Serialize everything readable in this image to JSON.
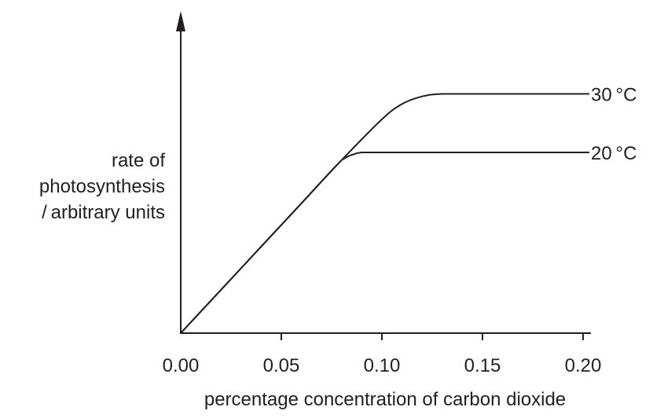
{
  "chart_data": {
    "type": "line",
    "ylabel_lines": [
      "rate of",
      "photosynthesis",
      "/ arbitrary units"
    ],
    "xlabel": "percentage concentration of carbon dioxide",
    "x_ticks": [
      "0.00",
      "0.05",
      "0.10",
      "0.15",
      "0.20"
    ],
    "xlim": [
      0,
      0.2
    ],
    "ylim": [
      0,
      100
    ],
    "y_ticks_shown": false,
    "grid": false,
    "series": [
      {
        "name": "30 °C",
        "x": [
          0,
          0.02,
          0.04,
          0.06,
          0.08,
          0.1,
          0.11,
          0.12,
          0.13,
          0.15,
          0.2
        ],
        "y": [
          0,
          17,
          34,
          51,
          68,
          84,
          90,
          93,
          94,
          94,
          94
        ]
      },
      {
        "name": "20 °C",
        "x": [
          0,
          0.02,
          0.04,
          0.06,
          0.08,
          0.085,
          0.09,
          0.1,
          0.15,
          0.2
        ],
        "y": [
          0,
          17,
          34,
          51,
          68,
          70,
          71,
          71,
          71,
          71
        ]
      }
    ],
    "line_color": "#231f20"
  }
}
